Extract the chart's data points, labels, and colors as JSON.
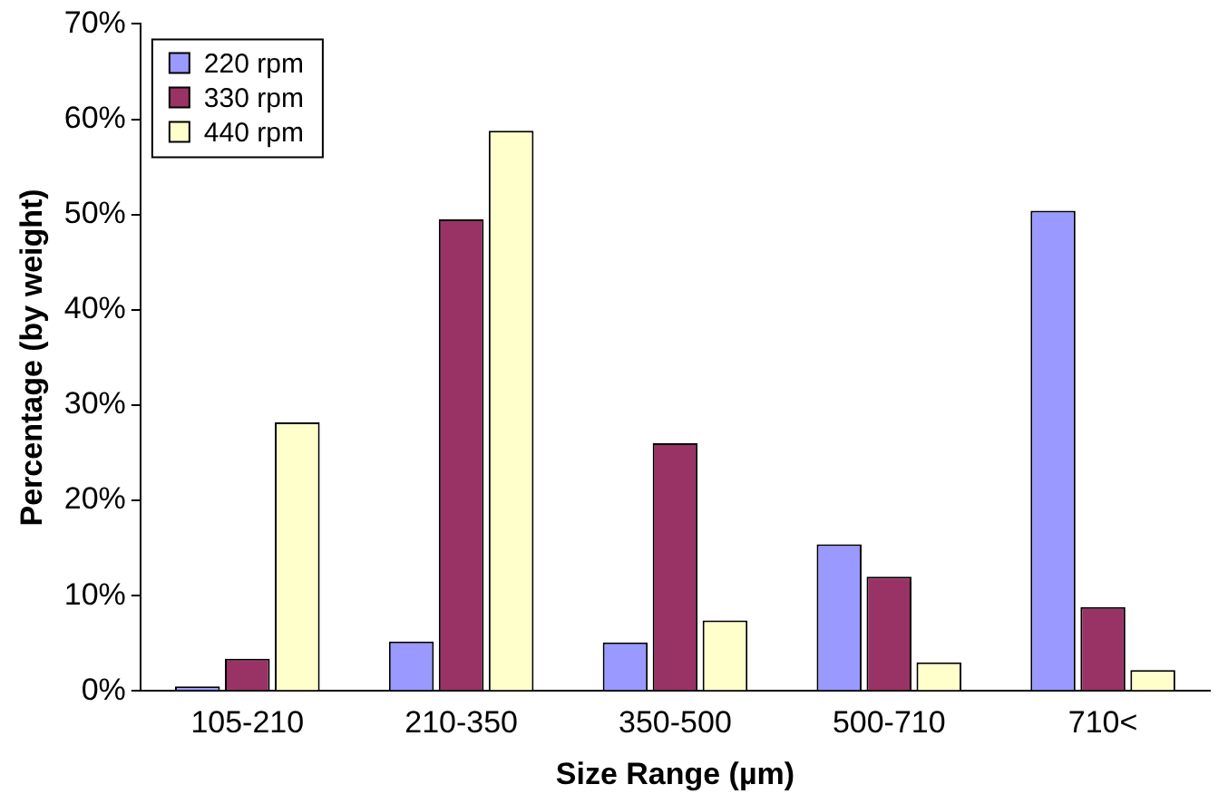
{
  "chart_data": {
    "type": "bar",
    "xlabel": "Size Range (µm)",
    "ylabel": "Percentage (by weight)",
    "categories": [
      "105-210",
      "210-350",
      "350-500",
      "500-710",
      "710<"
    ],
    "series": [
      {
        "name": "220 rpm",
        "color": "#9999ff",
        "values": [
          0.5,
          5.2,
          5.1,
          15.4,
          50.4
        ]
      },
      {
        "name": "330 rpm",
        "color": "#993366",
        "values": [
          3.4,
          49.5,
          26,
          12,
          8.8
        ]
      },
      {
        "name": "440 rpm",
        "color": "#ffffcc",
        "values": [
          28.2,
          58.8,
          7.4,
          3,
          2.2
        ]
      }
    ],
    "ylim": [
      0,
      70
    ],
    "yticks": [
      {
        "value": 0,
        "label": "0%"
      },
      {
        "value": 10,
        "label": "10%"
      },
      {
        "value": 20,
        "label": "20%"
      },
      {
        "value": 30,
        "label": "30%"
      },
      {
        "value": 40,
        "label": "40%"
      },
      {
        "value": 50,
        "label": "50%"
      },
      {
        "value": 60,
        "label": "60%"
      },
      {
        "value": 70,
        "label": "70%"
      }
    ],
    "grid": false,
    "legend": "top left"
  }
}
